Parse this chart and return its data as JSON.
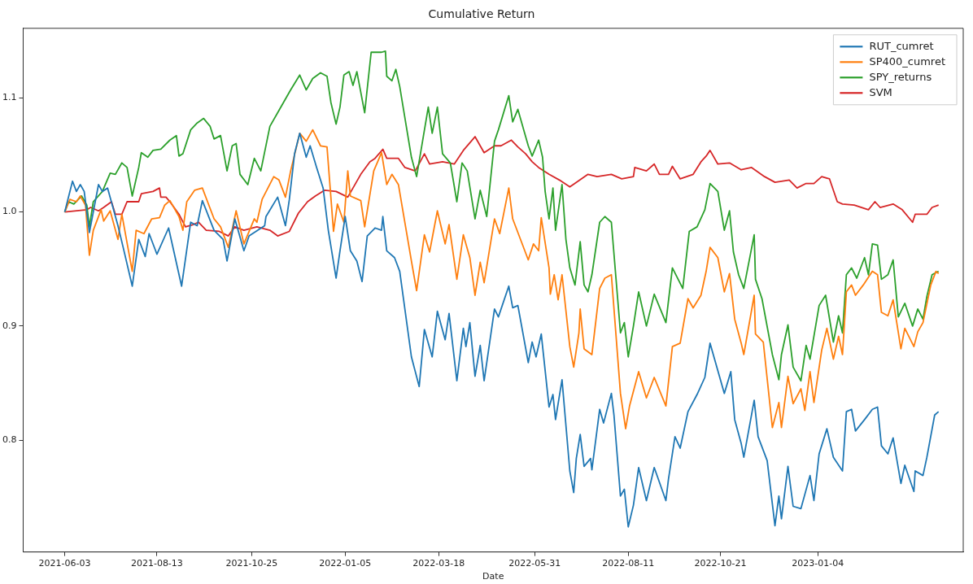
{
  "chart_data": {
    "type": "line",
    "title": "Cumulative Return",
    "xlabel": "Date",
    "xlim": [
      "2021-05-02",
      "2023-04-26"
    ],
    "xticks": [
      "2021-06-03",
      "2021-08-13",
      "2021-10-25",
      "2022-01-05",
      "2022-03-18",
      "2022-05-31",
      "2022-08-11",
      "2022-10-21",
      "2023-01-04"
    ],
    "ylim": [
      0.702,
      1.161
    ],
    "yticks": [
      0.8,
      0.9,
      {
        "value": 1,
        "label": "1.0"
      },
      1.1
    ],
    "grid": false,
    "legend": "top right",
    "marker": "none",
    "line_style": "solid",
    "series": [
      {
        "name": "RUT_cumret",
        "color": "#1f77b4",
        "x": [
          "2021-06-03",
          "2021-06-09",
          "2021-06-12",
          "2021-06-15",
          "2021-06-18",
          "2021-06-22",
          "2021-06-29",
          "2021-07-02",
          "2021-07-06",
          "2021-07-14",
          "2021-07-18",
          "2021-07-25",
          "2021-07-30",
          "2021-08-04",
          "2021-08-07",
          "2021-08-13",
          "2021-08-22",
          "2021-09-01",
          "2021-09-08",
          "2021-09-13",
          "2021-09-17",
          "2021-09-26",
          "2021-10-03",
          "2021-10-06",
          "2021-10-12",
          "2021-10-19",
          "2021-10-23",
          "2021-11-04",
          "2021-11-05",
          "2021-11-14",
          "2021-11-20",
          "2021-11-23",
          "2021-11-27",
          "2021-12-01",
          "2021-12-06",
          "2021-12-09",
          "2021-12-14",
          "2021-12-19",
          "2021-12-23",
          "2021-12-29",
          "2022-01-01",
          "2022-01-05",
          "2022-01-09",
          "2022-01-14",
          "2022-01-18",
          "2022-01-22",
          "2022-01-28",
          "2022-02-02",
          "2022-02-03",
          "2022-02-06",
          "2022-02-12",
          "2022-02-16",
          "2022-02-25",
          "2022-03-03",
          "2022-03-07",
          "2022-03-13",
          "2022-03-17",
          "2022-03-23",
          "2022-03-26",
          "2022-04-01",
          "2022-04-06",
          "2022-04-08",
          "2022-04-11",
          "2022-04-15",
          "2022-04-19",
          "2022-04-22",
          "2022-04-30",
          "2022-05-03",
          "2022-05-11",
          "2022-05-14",
          "2022-05-18",
          "2022-05-26",
          "2022-05-29",
          "2022-06-01",
          "2022-06-05",
          "2022-06-11",
          "2022-06-14",
          "2022-06-16",
          "2022-06-21",
          "2022-06-27",
          "2022-06-30",
          "2022-07-02",
          "2022-07-05",
          "2022-07-08",
          "2022-07-13",
          "2022-07-14",
          "2022-07-20",
          "2022-07-23",
          "2022-07-29",
          "2022-07-31",
          "2022-08-05",
          "2022-08-08",
          "2022-08-11",
          "2022-08-15",
          "2022-08-19",
          "2022-08-25",
          "2022-08-31",
          "2022-09-09",
          "2022-09-11",
          "2022-09-16",
          "2022-09-20",
          "2022-09-26",
          "2022-10-03",
          "2022-10-09",
          "2022-10-13",
          "2022-10-24",
          "2022-10-29",
          "2022-11-01",
          "2022-11-06",
          "2022-11-08",
          "2022-11-16",
          "2022-11-19",
          "2022-11-26",
          "2022-12-02",
          "2022-12-05",
          "2022-12-07",
          "2022-12-12",
          "2022-12-16",
          "2022-12-22",
          "2022-12-29",
          "2023-01-01",
          "2023-01-05",
          "2023-01-11",
          "2023-01-16",
          "2023-01-23",
          "2023-01-26",
          "2023-01-30",
          "2023-02-02",
          "2023-02-09",
          "2023-02-15",
          "2023-02-19",
          "2023-02-22",
          "2023-02-27",
          "2023-03-03",
          "2023-03-09",
          "2023-03-12",
          "2023-03-19",
          "2023-03-20",
          "2023-03-26",
          "2023-03-29",
          "2023-04-04",
          "2023-04-07"
        ],
        "values": [
          1.0,
          1.027,
          1.018,
          1.024,
          1.018,
          0.982,
          1.024,
          1.018,
          1.021,
          0.988,
          0.969,
          0.935,
          0.976,
          0.961,
          0.981,
          0.963,
          0.986,
          0.935,
          0.991,
          0.988,
          1.01,
          0.984,
          0.976,
          0.957,
          0.994,
          0.966,
          0.979,
          0.988,
          0.996,
          1.013,
          0.988,
          1.011,
          1.051,
          1.069,
          1.048,
          1.058,
          1.039,
          1.021,
          0.984,
          0.942,
          0.966,
          0.996,
          0.966,
          0.957,
          0.939,
          0.979,
          0.986,
          0.984,
          0.996,
          0.966,
          0.96,
          0.948,
          0.873,
          0.847,
          0.897,
          0.873,
          0.913,
          0.888,
          0.911,
          0.852,
          0.898,
          0.882,
          0.903,
          0.856,
          0.883,
          0.852,
          0.915,
          0.908,
          0.935,
          0.916,
          0.918,
          0.868,
          0.886,
          0.873,
          0.893,
          0.829,
          0.84,
          0.818,
          0.853,
          0.773,
          0.754,
          0.784,
          0.805,
          0.777,
          0.784,
          0.774,
          0.827,
          0.815,
          0.841,
          0.822,
          0.751,
          0.757,
          0.724,
          0.743,
          0.776,
          0.747,
          0.776,
          0.747,
          0.766,
          0.803,
          0.793,
          0.825,
          0.84,
          0.855,
          0.885,
          0.841,
          0.86,
          0.818,
          0.797,
          0.785,
          0.835,
          0.803,
          0.782,
          0.725,
          0.751,
          0.731,
          0.777,
          0.742,
          0.74,
          0.769,
          0.747,
          0.788,
          0.81,
          0.785,
          0.773,
          0.825,
          0.827,
          0.808,
          0.818,
          0.827,
          0.829,
          0.795,
          0.788,
          0.802,
          0.762,
          0.778,
          0.755,
          0.773,
          0.769,
          0.785,
          0.822,
          0.825
        ]
      },
      {
        "name": "SP400_cumret",
        "color": "#ff7f0e",
        "x": [
          "2021-06-03",
          "2021-06-07",
          "2021-06-12",
          "2021-06-15",
          "2021-06-19",
          "2021-06-22",
          "2021-06-25",
          "2021-07-01",
          "2021-07-03",
          "2021-07-08",
          "2021-07-14",
          "2021-07-17",
          "2021-07-25",
          "2021-07-28",
          "2021-08-03",
          "2021-08-09",
          "2021-08-15",
          "2021-08-19",
          "2021-08-23",
          "2021-08-30",
          "2021-09-02",
          "2021-09-05",
          "2021-09-11",
          "2021-09-17",
          "2021-09-21",
          "2021-09-26",
          "2021-10-01",
          "2021-10-07",
          "2021-10-13",
          "2021-10-19",
          "2021-10-27",
          "2021-10-29",
          "2021-11-02",
          "2021-11-11",
          "2021-11-15",
          "2021-11-20",
          "2021-11-24",
          "2021-12-01",
          "2021-12-06",
          "2021-12-11",
          "2021-12-17",
          "2021-12-22",
          "2021-12-27",
          "2021-12-30",
          "2022-01-04",
          "2022-01-07",
          "2022-01-09",
          "2022-01-17",
          "2022-01-20",
          "2022-01-27",
          "2022-02-02",
          "2022-02-06",
          "2022-02-10",
          "2022-02-15",
          "2022-02-25",
          "2022-03-01",
          "2022-03-07",
          "2022-03-11",
          "2022-03-17",
          "2022-03-23",
          "2022-03-26",
          "2022-04-01",
          "2022-04-06",
          "2022-04-11",
          "2022-04-15",
          "2022-04-19",
          "2022-04-22",
          "2022-04-30",
          "2022-05-04",
          "2022-05-11",
          "2022-05-14",
          "2022-05-26",
          "2022-05-30",
          "2022-06-03",
          "2022-06-05",
          "2022-06-11",
          "2022-06-12",
          "2022-06-15",
          "2022-06-18",
          "2022-06-21",
          "2022-06-27",
          "2022-06-30",
          "2022-07-04",
          "2022-07-05",
          "2022-07-08",
          "2022-07-14",
          "2022-07-20",
          "2022-07-24",
          "2022-07-29",
          "2022-08-05",
          "2022-08-09",
          "2022-08-12",
          "2022-08-19",
          "2022-08-25",
          "2022-08-31",
          "2022-09-09",
          "2022-09-14",
          "2022-09-20",
          "2022-09-26",
          "2022-09-30",
          "2022-10-06",
          "2022-10-10",
          "2022-10-13",
          "2022-10-19",
          "2022-10-24",
          "2022-10-28",
          "2022-11-01",
          "2022-11-06",
          "2022-11-08",
          "2022-11-16",
          "2022-11-17",
          "2022-11-23",
          "2022-11-30",
          "2022-12-05",
          "2022-12-07",
          "2022-12-12",
          "2022-12-16",
          "2022-12-22",
          "2022-12-25",
          "2022-12-29",
          "2023-01-01",
          "2023-01-07",
          "2023-01-11",
          "2023-01-16",
          "2023-01-20",
          "2023-01-23",
          "2023-01-26",
          "2023-01-30",
          "2023-02-02",
          "2023-02-08",
          "2023-02-15",
          "2023-02-19",
          "2023-02-22",
          "2023-02-27",
          "2023-03-03",
          "2023-03-09",
          "2023-03-12",
          "2023-03-19",
          "2023-03-22",
          "2023-03-26",
          "2023-04-01",
          "2023-04-05",
          "2023-04-07"
        ],
        "values": [
          1.0,
          1.011,
          1.009,
          1.014,
          1.006,
          0.962,
          0.984,
          1.002,
          0.992,
          1.001,
          0.976,
          0.998,
          0.948,
          0.984,
          0.981,
          0.994,
          0.995,
          1.006,
          1.01,
          0.996,
          0.984,
          1.009,
          1.019,
          1.021,
          1.009,
          0.994,
          0.987,
          0.969,
          1.001,
          0.972,
          0.994,
          0.991,
          1.011,
          1.031,
          1.028,
          1.013,
          1.036,
          1.069,
          1.062,
          1.072,
          1.058,
          1.057,
          0.983,
          1.007,
          0.991,
          1.036,
          1.014,
          1.01,
          0.987,
          1.036,
          1.052,
          1.024,
          1.033,
          1.024,
          0.957,
          0.931,
          0.98,
          0.965,
          1.001,
          0.972,
          0.989,
          0.941,
          0.98,
          0.96,
          0.927,
          0.956,
          0.938,
          0.994,
          0.981,
          1.021,
          0.994,
          0.958,
          0.972,
          0.966,
          0.995,
          0.951,
          0.928,
          0.945,
          0.923,
          0.945,
          0.882,
          0.864,
          0.894,
          0.915,
          0.88,
          0.875,
          0.933,
          0.942,
          0.945,
          0.841,
          0.81,
          0.83,
          0.86,
          0.837,
          0.855,
          0.83,
          0.882,
          0.885,
          0.924,
          0.916,
          0.927,
          0.948,
          0.969,
          0.96,
          0.93,
          0.946,
          0.906,
          0.885,
          0.875,
          0.927,
          0.893,
          0.886,
          0.811,
          0.833,
          0.811,
          0.856,
          0.832,
          0.845,
          0.826,
          0.86,
          0.833,
          0.879,
          0.898,
          0.871,
          0.891,
          0.875,
          0.93,
          0.936,
          0.927,
          0.936,
          0.948,
          0.945,
          0.912,
          0.909,
          0.923,
          0.88,
          0.898,
          0.882,
          0.895,
          0.903,
          0.936,
          0.948,
          0.946
        ]
      },
      {
        "name": "SPY_returns",
        "color": "#2ca02c",
        "x": [
          "2021-06-03",
          "2021-06-06",
          "2021-06-10",
          "2021-06-16",
          "2021-06-20",
          "2021-06-22",
          "2021-06-25",
          "2021-07-02",
          "2021-07-08",
          "2021-07-12",
          "2021-07-17",
          "2021-07-21",
          "2021-07-25",
          "2021-07-30",
          "2021-08-01",
          "2021-08-06",
          "2021-08-10",
          "2021-08-16",
          "2021-08-23",
          "2021-08-28",
          "2021-08-30",
          "2021-09-02",
          "2021-09-08",
          "2021-09-13",
          "2021-09-18",
          "2021-09-23",
          "2021-09-26",
          "2021-10-01",
          "2021-10-06",
          "2021-10-10",
          "2021-10-13",
          "2021-10-16",
          "2021-10-22",
          "2021-10-27",
          "2021-11-01",
          "2021-11-08",
          "2021-11-15",
          "2021-11-24",
          "2021-12-01",
          "2021-12-06",
          "2021-12-11",
          "2021-12-17",
          "2021-12-22",
          "2021-12-25",
          "2021-12-29",
          "2022-01-01",
          "2022-01-04",
          "2022-01-08",
          "2022-01-11",
          "2022-01-14",
          "2022-01-20",
          "2022-01-25",
          "2022-02-02",
          "2022-02-05",
          "2022-02-06",
          "2022-02-10",
          "2022-02-13",
          "2022-02-16",
          "2022-02-25",
          "2022-03-01",
          "2022-03-10",
          "2022-03-13",
          "2022-03-17",
          "2022-03-21",
          "2022-03-27",
          "2022-04-01",
          "2022-04-05",
          "2022-04-09",
          "2022-04-15",
          "2022-04-19",
          "2022-04-24",
          "2022-04-30",
          "2022-05-03",
          "2022-05-11",
          "2022-05-14",
          "2022-05-18",
          "2022-05-23",
          "2022-05-26",
          "2022-05-29",
          "2022-06-03",
          "2022-06-06",
          "2022-06-08",
          "2022-06-11",
          "2022-06-14",
          "2022-06-16",
          "2022-06-21",
          "2022-06-24",
          "2022-06-27",
          "2022-07-01",
          "2022-07-05",
          "2022-07-08",
          "2022-07-11",
          "2022-07-14",
          "2022-07-20",
          "2022-07-24",
          "2022-07-29",
          "2022-08-05",
          "2022-08-08",
          "2022-08-11",
          "2022-08-15",
          "2022-08-19",
          "2022-08-25",
          "2022-08-31",
          "2022-09-09",
          "2022-09-14",
          "2022-09-22",
          "2022-09-27",
          "2022-10-03",
          "2022-10-09",
          "2022-10-13",
          "2022-10-19",
          "2022-10-24",
          "2022-10-28",
          "2022-10-31",
          "2022-11-04",
          "2022-11-08",
          "2022-11-16",
          "2022-11-17",
          "2022-11-22",
          "2022-11-30",
          "2022-12-05",
          "2022-12-07",
          "2022-12-12",
          "2022-12-16",
          "2022-12-22",
          "2022-12-26",
          "2022-12-29",
          "2023-01-05",
          "2023-01-10",
          "2023-01-16",
          "2023-01-20",
          "2023-01-23",
          "2023-01-26",
          "2023-01-30",
          "2023-02-03",
          "2023-02-09",
          "2023-02-12",
          "2023-02-15",
          "2023-02-19",
          "2023-02-22",
          "2023-02-27",
          "2023-03-03",
          "2023-03-07",
          "2023-03-12",
          "2023-03-18",
          "2023-03-22",
          "2023-03-26",
          "2023-03-29",
          "2023-04-02",
          "2023-04-07"
        ],
        "values": [
          1.0,
          1.009,
          1.007,
          1.014,
          1.006,
          0.987,
          1.009,
          1.018,
          1.034,
          1.033,
          1.043,
          1.039,
          1.014,
          1.039,
          1.052,
          1.048,
          1.054,
          1.055,
          1.063,
          1.067,
          1.049,
          1.051,
          1.072,
          1.078,
          1.082,
          1.075,
          1.064,
          1.067,
          1.036,
          1.058,
          1.06,
          1.033,
          1.024,
          1.047,
          1.036,
          1.075,
          1.089,
          1.107,
          1.12,
          1.107,
          1.117,
          1.122,
          1.119,
          1.096,
          1.077,
          1.092,
          1.12,
          1.123,
          1.111,
          1.123,
          1.087,
          1.14,
          1.14,
          1.141,
          1.119,
          1.115,
          1.125,
          1.11,
          1.048,
          1.031,
          1.092,
          1.069,
          1.092,
          1.051,
          1.043,
          1.009,
          1.043,
          1.036,
          0.994,
          1.019,
          0.996,
          1.062,
          1.072,
          1.102,
          1.079,
          1.09,
          1.07,
          1.058,
          1.049,
          1.063,
          1.048,
          1.018,
          0.994,
          1.021,
          0.984,
          1.024,
          0.976,
          0.951,
          0.936,
          0.974,
          0.936,
          0.93,
          0.945,
          0.991,
          0.996,
          0.991,
          0.894,
          0.903,
          0.873,
          0.9,
          0.93,
          0.9,
          0.928,
          0.903,
          0.951,
          0.933,
          0.983,
          0.987,
          1.002,
          1.025,
          1.018,
          0.984,
          1.001,
          0.965,
          0.945,
          0.933,
          0.98,
          0.941,
          0.924,
          0.875,
          0.853,
          0.875,
          0.901,
          0.864,
          0.852,
          0.883,
          0.871,
          0.918,
          0.927,
          0.886,
          0.909,
          0.894,
          0.945,
          0.951,
          0.942,
          0.96,
          0.945,
          0.972,
          0.971,
          0.941,
          0.945,
          0.958,
          0.908,
          0.92,
          0.9,
          0.915,
          0.906,
          0.926,
          0.945,
          0.948
        ]
      },
      {
        "name": "SVM",
        "color": "#d62728",
        "x": [
          "2021-06-03",
          "2021-06-20",
          "2021-06-23",
          "2021-06-29",
          "2021-07-03",
          "2021-07-09",
          "2021-07-12",
          "2021-07-17",
          "2021-07-21",
          "2021-07-30",
          "2021-08-01",
          "2021-08-10",
          "2021-08-15",
          "2021-08-16",
          "2021-08-20",
          "2021-08-23",
          "2021-08-30",
          "2021-09-04",
          "2021-09-10",
          "2021-09-14",
          "2021-09-20",
          "2021-09-30",
          "2021-10-07",
          "2021-10-12",
          "2021-10-19",
          "2021-10-29",
          "2021-11-08",
          "2021-11-14",
          "2021-11-23",
          "2021-11-30",
          "2021-12-07",
          "2021-12-13",
          "2021-12-20",
          "2021-12-29",
          "2022-01-07",
          "2022-01-17",
          "2022-01-24",
          "2022-01-28",
          "2022-02-03",
          "2022-02-06",
          "2022-02-15",
          "2022-02-20",
          "2022-02-28",
          "2022-03-07",
          "2022-03-11",
          "2022-03-21",
          "2022-03-30",
          "2022-04-06",
          "2022-04-15",
          "2022-04-22",
          "2022-04-30",
          "2022-05-05",
          "2022-05-13",
          "2022-05-18",
          "2022-05-24",
          "2022-05-29",
          "2022-06-03",
          "2022-06-11",
          "2022-06-19",
          "2022-06-27",
          "2022-07-02",
          "2022-07-11",
          "2022-07-18",
          "2022-07-29",
          "2022-08-06",
          "2022-08-15",
          "2022-08-16",
          "2022-08-25",
          "2022-08-31",
          "2022-09-04",
          "2022-09-11",
          "2022-09-14",
          "2022-09-20",
          "2022-09-30",
          "2022-10-06",
          "2022-10-10",
          "2022-10-13",
          "2022-10-19",
          "2022-10-28",
          "2022-11-06",
          "2022-11-14",
          "2022-11-24",
          "2022-12-02",
          "2022-12-13",
          "2022-12-19",
          "2022-12-26",
          "2023-01-01",
          "2023-01-07",
          "2023-01-13",
          "2023-01-19",
          "2023-01-23",
          "2023-02-01",
          "2023-02-12",
          "2023-02-17",
          "2023-02-21",
          "2023-03-03",
          "2023-03-10",
          "2023-03-18",
          "2023-03-20",
          "2023-03-29",
          "2023-04-02",
          "2023-04-07"
        ],
        "values": [
          1.0,
          1.002,
          1.004,
          1.001,
          1.004,
          1.009,
          0.998,
          0.998,
          1.009,
          1.009,
          1.016,
          1.018,
          1.021,
          1.013,
          1.013,
          1.009,
          0.998,
          0.987,
          0.989,
          0.991,
          0.984,
          0.983,
          0.979,
          0.987,
          0.984,
          0.987,
          0.984,
          0.979,
          0.983,
          0.999,
          1.009,
          1.014,
          1.019,
          1.018,
          1.013,
          1.033,
          1.044,
          1.047,
          1.055,
          1.047,
          1.047,
          1.039,
          1.036,
          1.051,
          1.042,
          1.044,
          1.042,
          1.054,
          1.066,
          1.052,
          1.058,
          1.058,
          1.063,
          1.057,
          1.051,
          1.044,
          1.039,
          1.033,
          1.028,
          1.022,
          1.026,
          1.033,
          1.031,
          1.033,
          1.029,
          1.031,
          1.039,
          1.036,
          1.042,
          1.033,
          1.033,
          1.04,
          1.029,
          1.033,
          1.044,
          1.049,
          1.054,
          1.042,
          1.043,
          1.037,
          1.039,
          1.031,
          1.026,
          1.028,
          1.021,
          1.025,
          1.025,
          1.031,
          1.029,
          1.009,
          1.007,
          1.006,
          1.002,
          1.009,
          1.004,
          1.007,
          1.002,
          0.991,
          0.998,
          0.998,
          1.004,
          1.006
        ]
      }
    ]
  }
}
